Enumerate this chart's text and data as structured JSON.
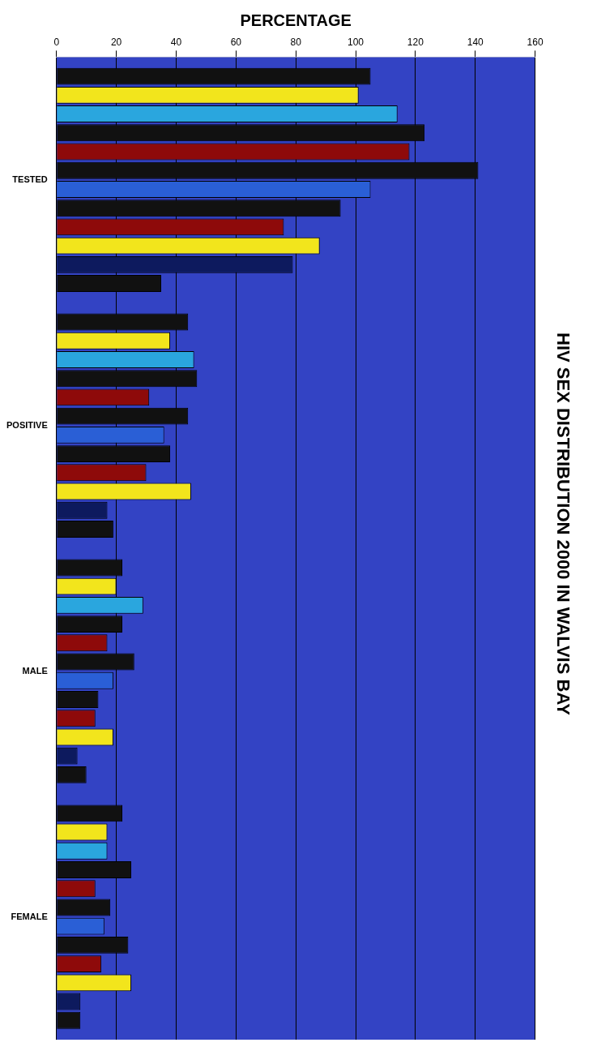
{
  "chart_data": {
    "type": "bar",
    "orientation": "horizontal",
    "title": "HIV SEX DISTRIBUTION 2000 IN WALVIS BAY",
    "xlabel": "PERCENTAGE",
    "categories": [
      "TESTED",
      "POSITIVE",
      "MALE",
      "FEMALE"
    ],
    "series": [
      {
        "color": "#111111",
        "values": [
          105,
          44,
          22,
          22
        ]
      },
      {
        "color": "#f2e51c",
        "values": [
          101,
          38,
          20,
          17
        ]
      },
      {
        "color": "#2aa6de",
        "values": [
          114,
          46,
          29,
          17
        ]
      },
      {
        "color": "#111111",
        "values": [
          123,
          47,
          22,
          25
        ]
      },
      {
        "color": "#8e0a0a",
        "values": [
          118,
          31,
          17,
          13
        ]
      },
      {
        "color": "#111111",
        "values": [
          141,
          44,
          26,
          18
        ]
      },
      {
        "color": "#2a5fd6",
        "values": [
          105,
          36,
          19,
          16
        ]
      },
      {
        "color": "#111111",
        "values": [
          95,
          38,
          14,
          24
        ]
      },
      {
        "color": "#8e0a0a",
        "values": [
          76,
          30,
          13,
          15
        ]
      },
      {
        "color": "#f2e51c",
        "values": [
          88,
          45,
          19,
          25
        ]
      },
      {
        "color": "#0d1a5e",
        "values": [
          79,
          17,
          7,
          8
        ]
      },
      {
        "color": "#111111",
        "values": [
          35,
          19,
          10,
          8
        ]
      }
    ],
    "xlim": [
      0,
      160
    ],
    "xticks": [
      0,
      20,
      40,
      60,
      80,
      100,
      120,
      140,
      160
    ],
    "grid": "x",
    "legend": false
  }
}
